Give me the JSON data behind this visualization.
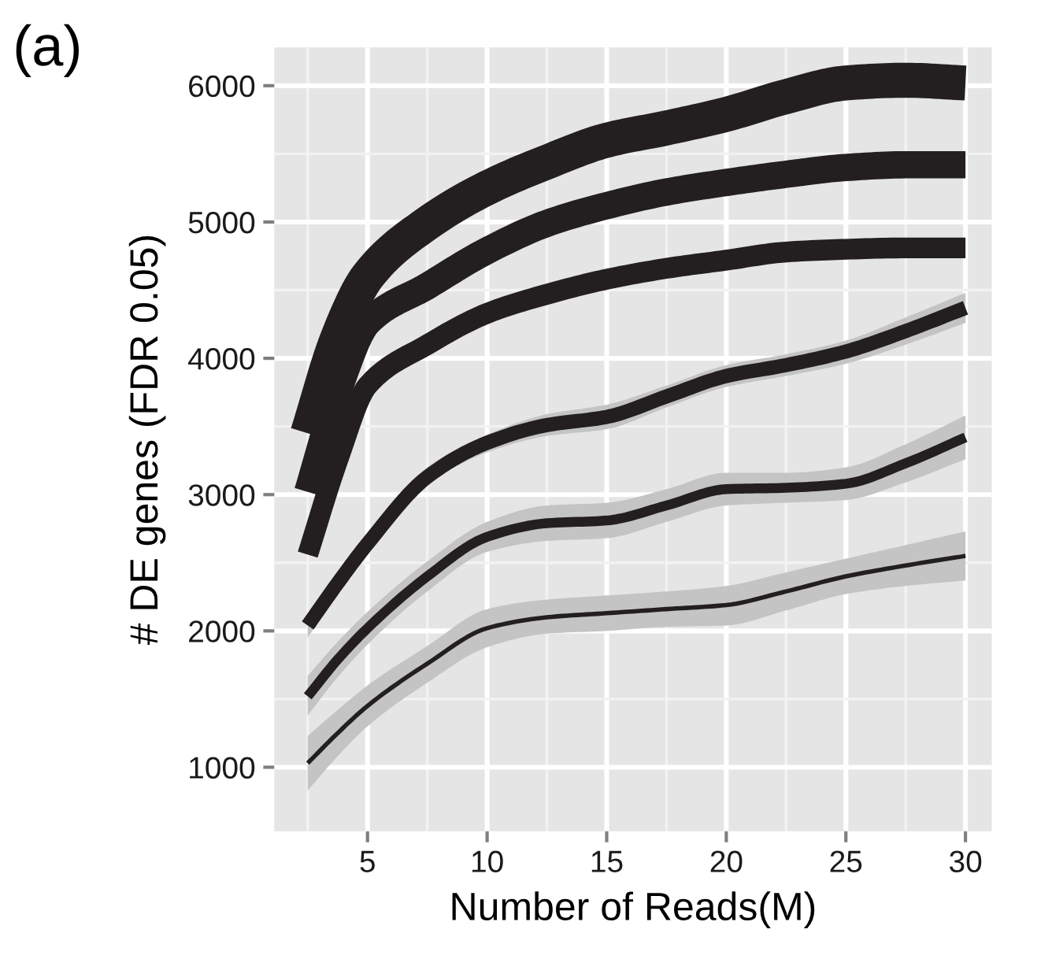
{
  "chart_data": {
    "type": "line",
    "xlabel": "Number of Reads(M)",
    "ylabel": "# DE genes (FDR 0.05)",
    "annotations": [
      "(a)"
    ],
    "x": [
      2.5,
      3.75,
      5,
      7.5,
      10,
      12.5,
      15,
      17.5,
      20,
      22.5,
      25,
      27.5,
      30
    ],
    "series": [
      {
        "color": "#231f20",
        "values": [
          3450,
          4150,
          4600,
          4990,
          5250,
          5440,
          5600,
          5690,
          5790,
          5920,
          6020,
          6040,
          6020
        ]
      },
      {
        "color": "#231f20",
        "values": [
          3020,
          3750,
          4260,
          4530,
          4790,
          4990,
          5120,
          5220,
          5290,
          5350,
          5400,
          5420,
          5420
        ]
      },
      {
        "color": "#231f20",
        "values": [
          2560,
          3250,
          3800,
          4100,
          4330,
          4470,
          4580,
          4660,
          4720,
          4780,
          4800,
          4810,
          4810
        ]
      },
      {
        "color": "#231f20",
        "values": [
          2040,
          2350,
          2640,
          3130,
          3380,
          3510,
          3570,
          3720,
          3870,
          3950,
          4050,
          4200,
          4370
        ],
        "lower": [
          1950,
          2280,
          2570,
          3070,
          3310,
          3430,
          3480,
          3640,
          3790,
          3870,
          3960,
          4100,
          4260
        ],
        "upper": [
          2130,
          2420,
          2710,
          3200,
          3440,
          3590,
          3660,
          3800,
          3950,
          4030,
          4130,
          4300,
          4480
        ]
      },
      {
        "color": "#231f20",
        "values": [
          1520,
          1790,
          2020,
          2400,
          2690,
          2790,
          2810,
          2920,
          3040,
          3050,
          3080,
          3230,
          3420
        ],
        "lower": [
          1380,
          1660,
          1900,
          2290,
          2580,
          2660,
          2680,
          2800,
          2920,
          2940,
          2960,
          3090,
          3260
        ],
        "upper": [
          1670,
          1920,
          2140,
          2510,
          2800,
          2920,
          2940,
          3040,
          3160,
          3160,
          3200,
          3370,
          3580
        ]
      },
      {
        "color": "#231f20",
        "values": [
          1030,
          1250,
          1450,
          1760,
          2020,
          2100,
          2130,
          2160,
          2190,
          2290,
          2400,
          2480,
          2550
        ],
        "lower": [
          830,
          1080,
          1300,
          1620,
          1880,
          1980,
          2000,
          2030,
          2040,
          2150,
          2270,
          2330,
          2370
        ],
        "upper": [
          1230,
          1420,
          1600,
          1890,
          2160,
          2230,
          2260,
          2290,
          2330,
          2430,
          2530,
          2630,
          2730
        ]
      }
    ],
    "xlim": [
      1.1,
      31.1
    ],
    "ylim": [
      530,
      6280
    ],
    "xticks": [
      5,
      10,
      15,
      20,
      25,
      30
    ],
    "yticks": [
      1000,
      2000,
      3000,
      4000,
      5000,
      6000
    ],
    "grid": true,
    "marker": "none",
    "line_style": "solid"
  }
}
